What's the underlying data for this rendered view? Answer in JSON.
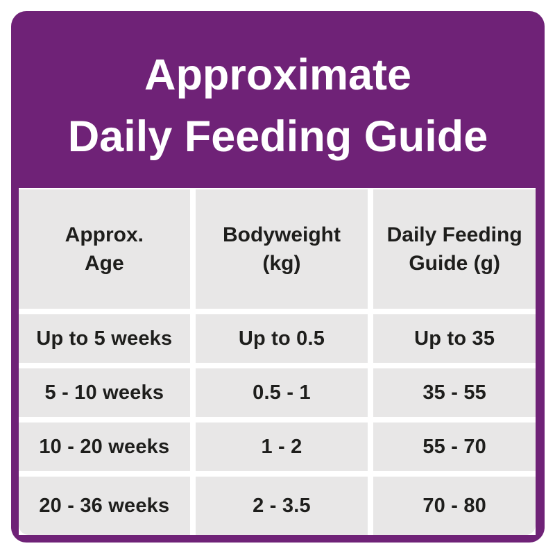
{
  "title": {
    "line1": "Approximate",
    "line2": "Daily Feeding Guide"
  },
  "colors": {
    "card_purple": "#6F2277",
    "cell_gray": "#E8E7E7",
    "text_dark": "#1E1E1C",
    "title_white": "#FFFFFF",
    "page_background": "#FFFFFF"
  },
  "table": {
    "headers": [
      {
        "line1": "Approx.",
        "line2": "Age"
      },
      {
        "line1": "Bodyweight",
        "line2": "(kg)"
      },
      {
        "line1": "Daily Feeding",
        "line2": "Guide (g)"
      }
    ]
  },
  "chart_data": {
    "type": "table",
    "title": "Approximate Daily Feeding Guide",
    "columns": [
      "Approx. Age",
      "Bodyweight (kg)",
      "Daily Feeding Guide (g)"
    ],
    "rows": [
      [
        "Up to 5 weeks",
        "Up to 0.5",
        "Up to 35"
      ],
      [
        "5 - 10 weeks",
        "0.5 - 1",
        "35 - 55"
      ],
      [
        "10 - 20 weeks",
        "1 - 2",
        "55 - 70"
      ],
      [
        "20 - 36 weeks",
        "2 - 3.5",
        "70 - 80"
      ]
    ],
    "layout_hints": {
      "header_background": "#E8E7E7",
      "row_background": "#E8E7E7",
      "frame_color": "#6F2277",
      "gridlines": "white gutters between cells"
    }
  }
}
